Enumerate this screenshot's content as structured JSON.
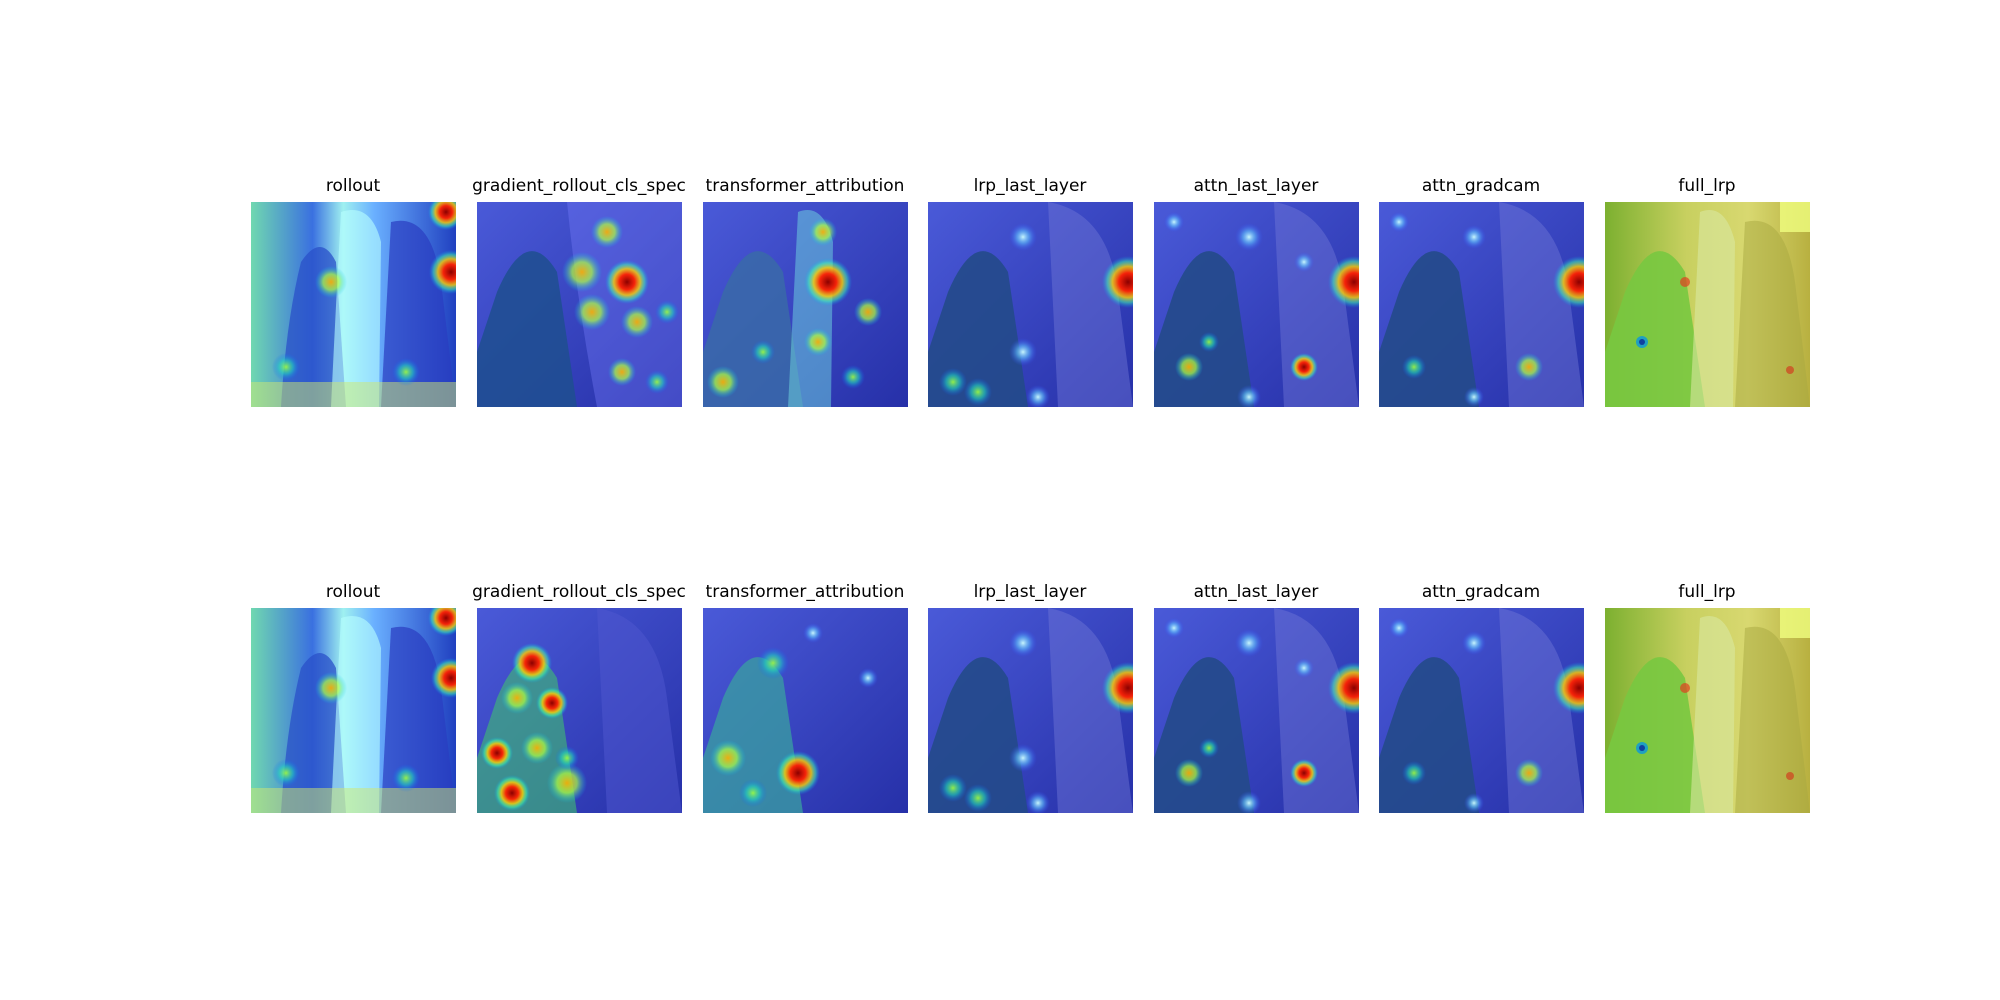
{
  "rows": [
    {
      "titles": [
        "rollout",
        "gradient_rollout_cls_spec",
        "transformer_attribution",
        "lrp_last_layer",
        "attn_last_layer",
        "attn_gradcam",
        "full_lrp"
      ]
    },
    {
      "titles": [
        "rollout",
        "gradient_rollout_cls_spec",
        "transformer_attribution",
        "lrp_last_layer",
        "attn_last_layer",
        "attn_gradcam",
        "full_lrp"
      ]
    }
  ],
  "colors": {
    "colormap": "jet",
    "low": "#00007f",
    "mid": "#00ffff",
    "high": "#7f0000"
  }
}
